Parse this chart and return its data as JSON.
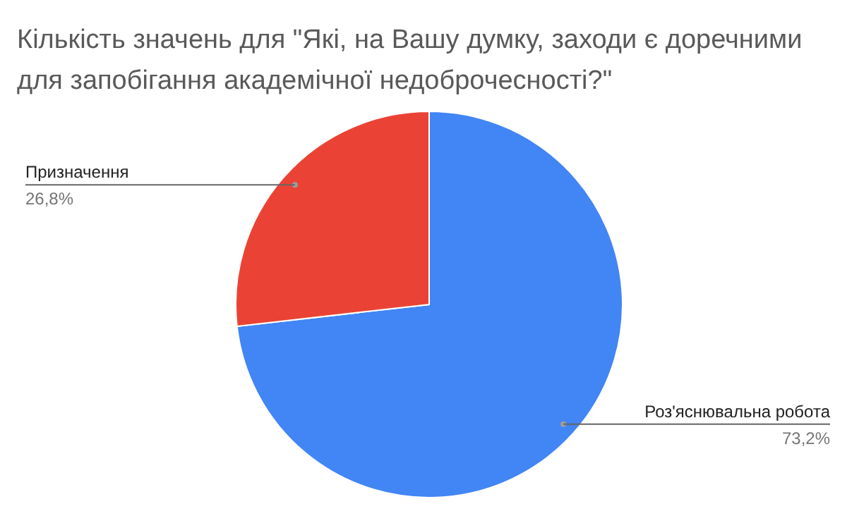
{
  "chart_data": {
    "type": "pie",
    "title": "Кількість значень для \"Які, на Вашу думку, заходи є доречними для запобігання академічної недоброчесності?\"",
    "categories": [
      "Роз'яснювальна робота",
      "Призначення"
    ],
    "values": [
      73.2,
      26.8
    ],
    "colors": [
      "#4285f4",
      "#ea4335"
    ],
    "value_labels": [
      "73,2%",
      "26,8%"
    ]
  }
}
